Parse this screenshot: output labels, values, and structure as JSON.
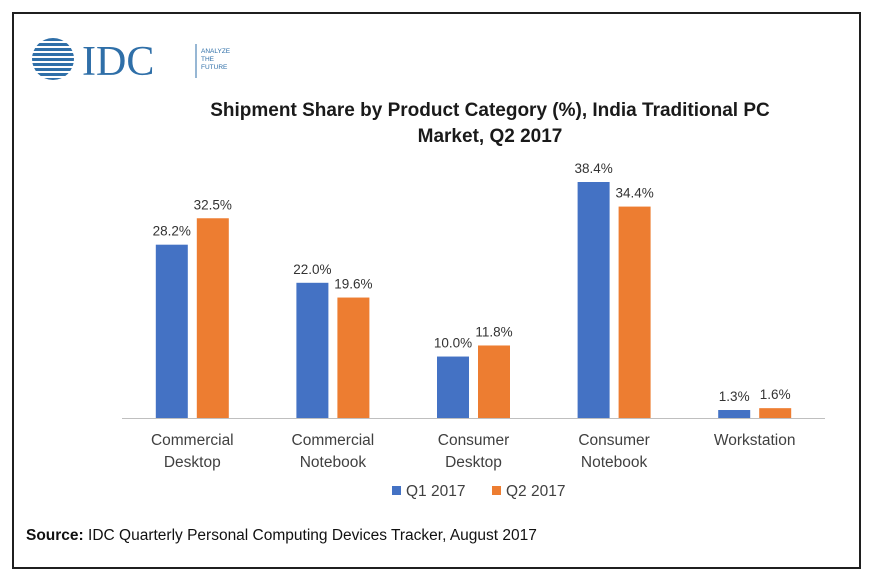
{
  "logo": {
    "brand": "IDC",
    "tagline_lines": [
      "ANALYZE",
      "THE",
      "FUTURE"
    ],
    "icon": "idc-globe-logo"
  },
  "chart_data": {
    "type": "bar",
    "title_lines": [
      "Shipment Share by Product Category (%), India Traditional PC",
      "Market, Q2 2017"
    ],
    "categories": [
      [
        "Commercial",
        "Desktop"
      ],
      [
        "Commercial",
        "Notebook"
      ],
      [
        "Consumer",
        "Desktop"
      ],
      [
        "Consumer",
        "Notebook"
      ],
      [
        "Workstation"
      ]
    ],
    "series": [
      {
        "name": "Q1 2017",
        "color": "#4472c4",
        "values": [
          28.2,
          22.0,
          10.0,
          38.4,
          1.3
        ],
        "labels": [
          "28.2%",
          "22.0%",
          "10.0%",
          "38.4%",
          "1.3%"
        ]
      },
      {
        "name": "Q2 2017",
        "color": "#ed7d31",
        "values": [
          32.5,
          19.6,
          11.8,
          34.4,
          1.6
        ],
        "labels": [
          "32.5%",
          "19.6%",
          "11.8%",
          "34.4%",
          "1.6%"
        ]
      }
    ],
    "ylim": [
      0,
      40
    ],
    "legend_position": "bottom",
    "grid": false
  },
  "source": {
    "prefix": "Source:",
    "text": " IDC Quarterly Personal Computing Devices Tracker, August 2017"
  }
}
